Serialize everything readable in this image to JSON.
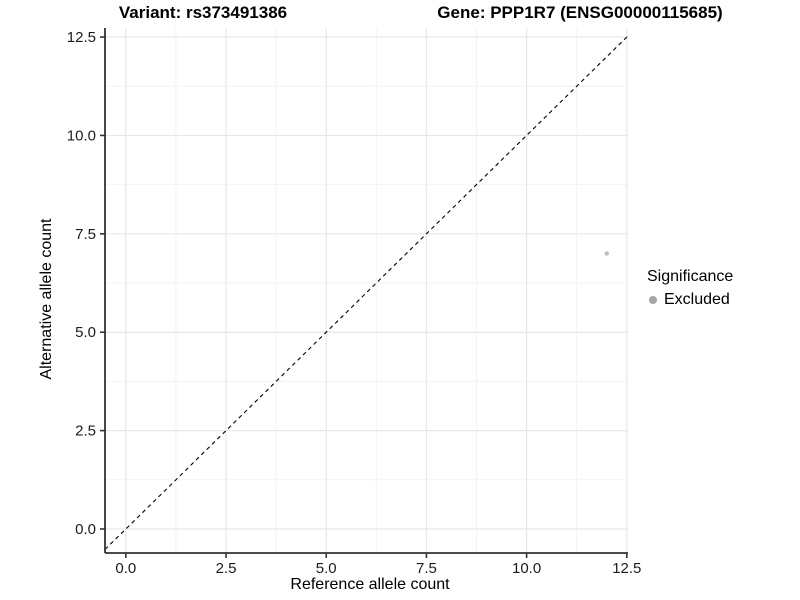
{
  "titles": {
    "variant": "Variant: rs373491386",
    "gene": "Gene: PPP1R7 (ENSG00000115685)"
  },
  "axes": {
    "x_label": "Reference allele count",
    "y_label": "Alternative allele count"
  },
  "legend": {
    "title": "Significance",
    "items": [
      {
        "label": "Excluded",
        "color": "#a5a5a5"
      }
    ]
  },
  "colors": {
    "background": "#ffffff",
    "axis_line": "#333333",
    "tick_mark": "#333333",
    "tick_label": "#1c1c1c",
    "grid_major": "#e7e7e7",
    "grid_minor": "#f3f3f3",
    "reference_line": "#000000",
    "point": "#bdbdbd"
  },
  "chart_data": {
    "type": "scatter",
    "title": "Variant: rs373491386 | Gene: PPP1R7 (ENSG00000115685)",
    "xlabel": "Reference allele count",
    "ylabel": "Alternative allele count",
    "xlim": [
      -0.52,
      12.53
    ],
    "ylim": [
      -0.61,
      12.73
    ],
    "x_ticks": [
      0,
      2.5,
      5,
      7.5,
      10,
      12.5
    ],
    "y_ticks": [
      0,
      2.5,
      5,
      7.5,
      10,
      12.5
    ],
    "x_tick_labels": [
      "0.0",
      "2.5",
      "5.0",
      "7.5",
      "10.0",
      "12.5"
    ],
    "y_tick_labels": [
      "0.0",
      "2.5",
      "5.0",
      "7.5",
      "10.0",
      "12.5"
    ],
    "grid": "major+minor",
    "legend_position": "right",
    "series": [
      {
        "name": "Excluded",
        "color": "#bdbdbd",
        "marker": "circle",
        "size": 2.2,
        "points": [
          [
            12,
            7
          ]
        ]
      }
    ],
    "reference_line": {
      "type": "identity-diagonal",
      "equation": "y = x",
      "style": "dashed",
      "color": "#000000"
    }
  }
}
